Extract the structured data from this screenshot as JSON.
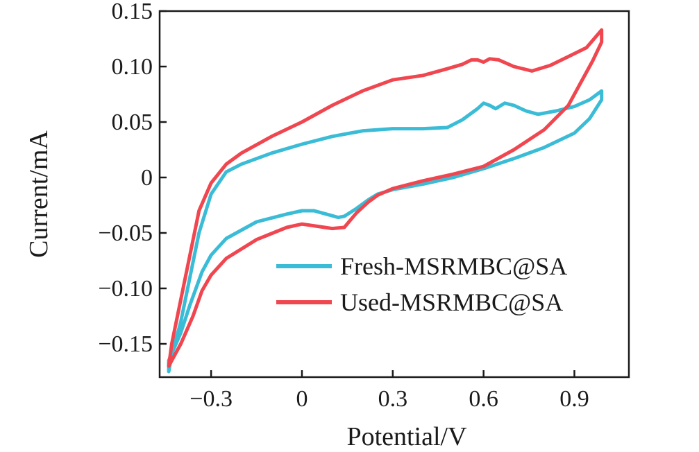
{
  "chart_data": {
    "type": "line",
    "xlabel": "Potential/V",
    "ylabel": "Current/mA",
    "xlim": [
      -0.47,
      1.08
    ],
    "ylim": [
      -0.18,
      0.15
    ],
    "x_ticks": [
      -0.3,
      0,
      0.3,
      0.6,
      0.9
    ],
    "x_tick_labels": [
      "−0.3",
      "0",
      "0.3",
      "0.6",
      "0.9"
    ],
    "y_ticks": [
      0.15,
      0.1,
      0.05,
      0,
      -0.05,
      -0.1,
      -0.15
    ],
    "y_tick_labels": [
      "0.15",
      "0.10",
      "0.05",
      "0",
      "−0.05",
      "−0.10",
      "−0.15"
    ],
    "grid": false,
    "legend_position": "bottom-right",
    "series": [
      {
        "name": "Fresh-MSRMBC@SA",
        "color": "#3bbcd6",
        "points": [
          [
            -0.44,
            -0.175
          ],
          [
            -0.43,
            -0.16
          ],
          [
            -0.4,
            -0.13
          ],
          [
            -0.37,
            -0.09
          ],
          [
            -0.34,
            -0.05
          ],
          [
            -0.3,
            -0.015
          ],
          [
            -0.25,
            0.005
          ],
          [
            -0.2,
            0.012
          ],
          [
            -0.1,
            0.022
          ],
          [
            0.0,
            0.03
          ],
          [
            0.1,
            0.037
          ],
          [
            0.2,
            0.042
          ],
          [
            0.3,
            0.044
          ],
          [
            0.4,
            0.044
          ],
          [
            0.48,
            0.045
          ],
          [
            0.53,
            0.052
          ],
          [
            0.58,
            0.062
          ],
          [
            0.6,
            0.067
          ],
          [
            0.62,
            0.065
          ],
          [
            0.64,
            0.062
          ],
          [
            0.67,
            0.067
          ],
          [
            0.7,
            0.065
          ],
          [
            0.74,
            0.06
          ],
          [
            0.78,
            0.057
          ],
          [
            0.84,
            0.06
          ],
          [
            0.9,
            0.064
          ],
          [
            0.95,
            0.07
          ],
          [
            0.99,
            0.078
          ],
          [
            0.99,
            0.07
          ],
          [
            0.95,
            0.053
          ],
          [
            0.9,
            0.04
          ],
          [
            0.8,
            0.027
          ],
          [
            0.7,
            0.017
          ],
          [
            0.6,
            0.008
          ],
          [
            0.5,
            0.0
          ],
          [
            0.4,
            -0.006
          ],
          [
            0.3,
            -0.011
          ],
          [
            0.25,
            -0.015
          ],
          [
            0.22,
            -0.02
          ],
          [
            0.18,
            -0.028
          ],
          [
            0.14,
            -0.035
          ],
          [
            0.12,
            -0.036
          ],
          [
            0.08,
            -0.033
          ],
          [
            0.04,
            -0.03
          ],
          [
            0.0,
            -0.03
          ],
          [
            -0.05,
            -0.033
          ],
          [
            -0.15,
            -0.04
          ],
          [
            -0.25,
            -0.055
          ],
          [
            -0.3,
            -0.07
          ],
          [
            -0.33,
            -0.085
          ],
          [
            -0.37,
            -0.115
          ],
          [
            -0.4,
            -0.14
          ],
          [
            -0.44,
            -0.165
          ]
        ]
      },
      {
        "name": "Used-MSRMBC@SA",
        "color": "#f0464f",
        "points": [
          [
            -0.44,
            -0.17
          ],
          [
            -0.43,
            -0.15
          ],
          [
            -0.4,
            -0.11
          ],
          [
            -0.37,
            -0.07
          ],
          [
            -0.34,
            -0.03
          ],
          [
            -0.3,
            -0.005
          ],
          [
            -0.25,
            0.012
          ],
          [
            -0.2,
            0.022
          ],
          [
            -0.1,
            0.037
          ],
          [
            0.0,
            0.05
          ],
          [
            0.1,
            0.065
          ],
          [
            0.2,
            0.078
          ],
          [
            0.3,
            0.088
          ],
          [
            0.4,
            0.092
          ],
          [
            0.48,
            0.098
          ],
          [
            0.53,
            0.102
          ],
          [
            0.56,
            0.106
          ],
          [
            0.58,
            0.106
          ],
          [
            0.6,
            0.104
          ],
          [
            0.62,
            0.107
          ],
          [
            0.65,
            0.106
          ],
          [
            0.7,
            0.1
          ],
          [
            0.76,
            0.096
          ],
          [
            0.82,
            0.101
          ],
          [
            0.88,
            0.109
          ],
          [
            0.94,
            0.117
          ],
          [
            0.99,
            0.133
          ],
          [
            0.99,
            0.122
          ],
          [
            0.96,
            0.105
          ],
          [
            0.92,
            0.085
          ],
          [
            0.88,
            0.065
          ],
          [
            0.8,
            0.043
          ],
          [
            0.7,
            0.025
          ],
          [
            0.6,
            0.01
          ],
          [
            0.5,
            0.003
          ],
          [
            0.4,
            -0.003
          ],
          [
            0.3,
            -0.01
          ],
          [
            0.25,
            -0.016
          ],
          [
            0.22,
            -0.022
          ],
          [
            0.18,
            -0.032
          ],
          [
            0.14,
            -0.045
          ],
          [
            0.1,
            -0.046
          ],
          [
            0.05,
            -0.044
          ],
          [
            0.0,
            -0.042
          ],
          [
            -0.05,
            -0.045
          ],
          [
            -0.15,
            -0.056
          ],
          [
            -0.25,
            -0.073
          ],
          [
            -0.3,
            -0.088
          ],
          [
            -0.33,
            -0.102
          ],
          [
            -0.36,
            -0.125
          ],
          [
            -0.4,
            -0.15
          ],
          [
            -0.44,
            -0.17
          ]
        ]
      }
    ]
  }
}
